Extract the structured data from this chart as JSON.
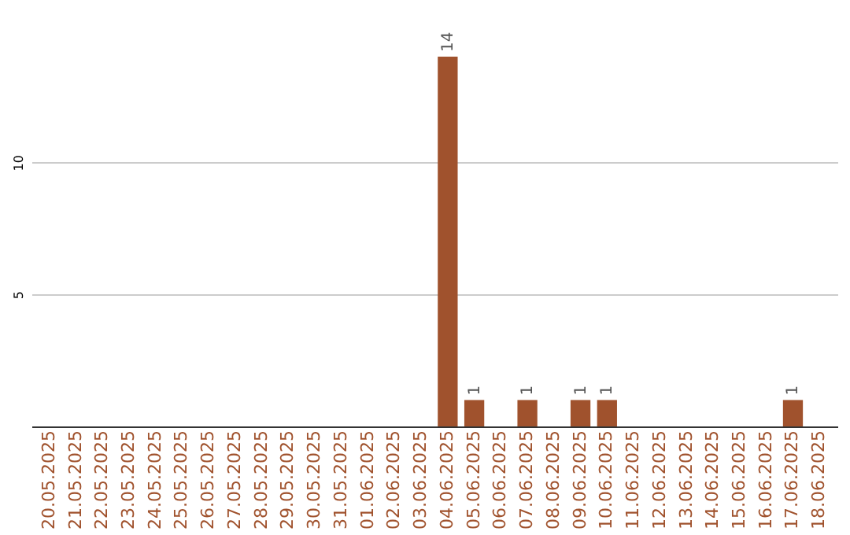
{
  "chart_data": {
    "type": "bar",
    "categories": [
      "20.05.2025",
      "21.05.2025",
      "22.05.2025",
      "23.05.2025",
      "24.05.2025",
      "25.05.2025",
      "26.05.2025",
      "27.05.2025",
      "28.05.2025",
      "29.05.2025",
      "30.05.2025",
      "31.05.2025",
      "01.06.2025",
      "02.06.2025",
      "03.06.2025",
      "04.06.2025",
      "05.06.2025",
      "06.06.2025",
      "07.06.2025",
      "08.06.2025",
      "09.06.2025",
      "10.06.2025",
      "11.06.2025",
      "12.06.2025",
      "13.06.2025",
      "14.06.2025",
      "15.06.2025",
      "16.06.2025",
      "17.06.2025",
      "18.06.2025"
    ],
    "values": [
      0,
      0,
      0,
      0,
      0,
      0,
      0,
      0,
      0,
      0,
      0,
      0,
      0,
      0,
      0,
      14,
      1,
      0,
      1,
      0,
      1,
      1,
      0,
      0,
      0,
      0,
      0,
      0,
      1,
      0
    ],
    "value_labels": [
      null,
      null,
      null,
      null,
      null,
      null,
      null,
      null,
      null,
      null,
      null,
      null,
      null,
      null,
      null,
      "14",
      "1",
      null,
      "1",
      null,
      "1",
      "1",
      null,
      null,
      null,
      null,
      null,
      null,
      "1",
      null
    ],
    "color": "#a0522d",
    "ylim": [
      0,
      14
    ],
    "yticks": [
      5,
      10
    ],
    "grid": "y"
  }
}
